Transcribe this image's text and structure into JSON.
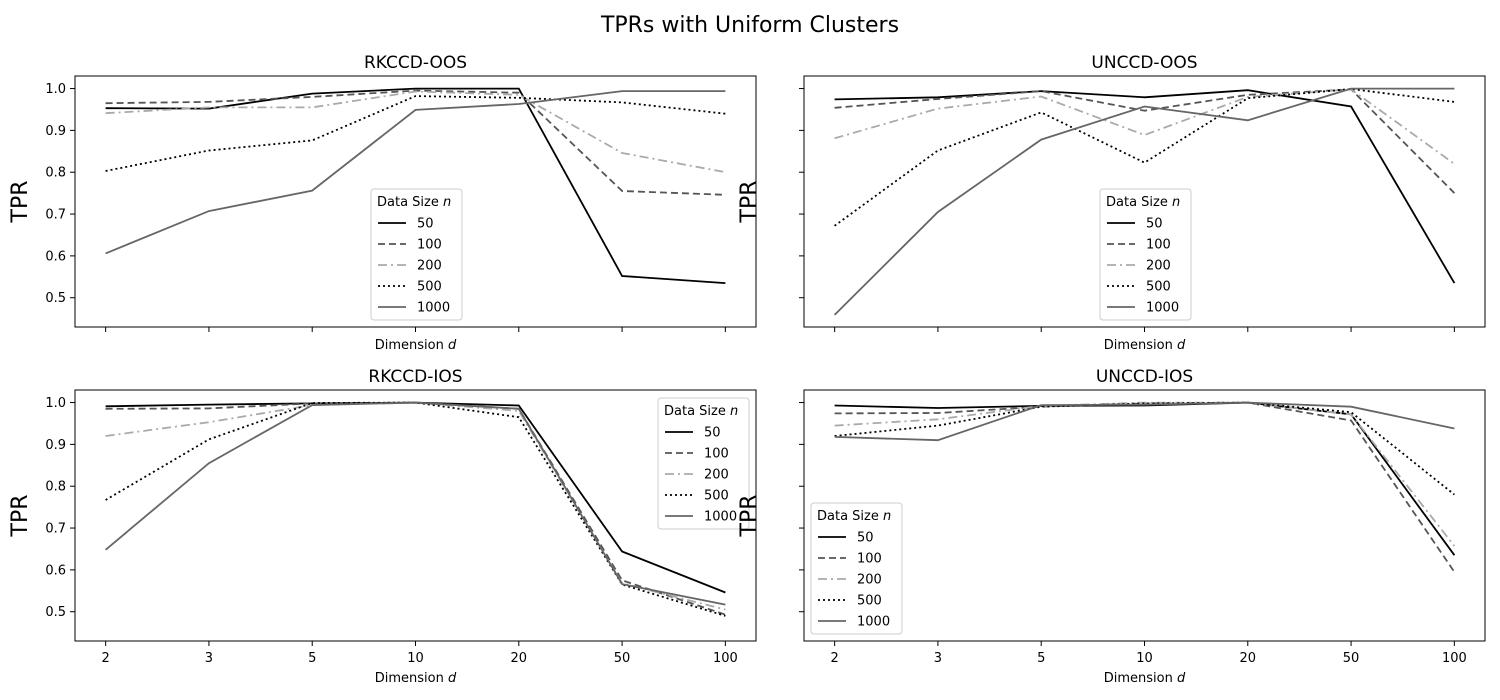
{
  "figure_title": "TPRs with Uniform Clusters",
  "legend_title_prefix": "Data Size",
  "legend_title_var": "n",
  "xlabel_prefix": "Dimension",
  "xlabel_var": "d",
  "ylabel": "TPR",
  "series_styles": [
    {
      "name": "50",
      "color": "#000000",
      "dash": "solid"
    },
    {
      "name": "100",
      "color": "#555555",
      "dash": "dashed"
    },
    {
      "name": "200",
      "color": "#aaaaaa",
      "dash": "dashdot"
    },
    {
      "name": "500",
      "color": "#000000",
      "dash": "dotted"
    },
    {
      "name": "1000",
      "color": "#666666",
      "dash": "solid"
    }
  ],
  "chart_data": [
    {
      "type": "line",
      "title": "RKCCD-OOS",
      "categories": [
        "2",
        "3",
        "5",
        "10",
        "20",
        "50",
        "100"
      ],
      "ylim": [
        0.43,
        1.03
      ],
      "yticks": [
        "0.5",
        "0.6",
        "0.7",
        "0.8",
        "0.9",
        "1.0"
      ],
      "xtick_labels_shown": false,
      "legend_position": "lower-center",
      "series": [
        {
          "name": "50",
          "values": [
            0.953,
            0.952,
            0.988,
            1.0,
            1.0,
            0.552,
            0.535
          ]
        },
        {
          "name": "100",
          "values": [
            0.965,
            0.968,
            0.98,
            0.995,
            0.99,
            0.755,
            0.746
          ]
        },
        {
          "name": "200",
          "values": [
            0.941,
            0.955,
            0.955,
            0.993,
            0.985,
            0.846,
            0.8
          ]
        },
        {
          "name": "500",
          "values": [
            0.803,
            0.852,
            0.876,
            0.982,
            0.978,
            0.967,
            0.94
          ]
        },
        {
          "name": "1000",
          "values": [
            0.606,
            0.707,
            0.756,
            0.949,
            0.963,
            0.994,
            0.994
          ]
        }
      ]
    },
    {
      "type": "line",
      "title": "UNCCD-OOS",
      "categories": [
        "2",
        "3",
        "5",
        "10",
        "20",
        "50",
        "100"
      ],
      "ylim": [
        0.43,
        1.03
      ],
      "yticks": [
        "0.5",
        "0.6",
        "0.7",
        "0.8",
        "0.9",
        "1.0"
      ],
      "xtick_labels_shown": false,
      "ytick_labels_shown": false,
      "legend_position": "lower-center",
      "series": [
        {
          "name": "50",
          "values": [
            0.974,
            0.979,
            0.994,
            0.979,
            0.996,
            0.957,
            0.535
          ]
        },
        {
          "name": "100",
          "values": [
            0.954,
            0.975,
            0.994,
            0.947,
            0.985,
            0.998,
            0.75
          ]
        },
        {
          "name": "200",
          "values": [
            0.881,
            0.952,
            0.981,
            0.889,
            0.98,
            0.998,
            0.82
          ]
        },
        {
          "name": "500",
          "values": [
            0.672,
            0.852,
            0.943,
            0.823,
            0.977,
            0.999,
            0.968
          ]
        },
        {
          "name": "1000",
          "values": [
            0.459,
            0.705,
            0.878,
            0.957,
            0.924,
            1.0,
            1.0
          ]
        }
      ]
    },
    {
      "type": "line",
      "title": "RKCCD-IOS",
      "categories": [
        "2",
        "3",
        "5",
        "10",
        "20",
        "50",
        "100"
      ],
      "ylim": [
        0.43,
        1.03
      ],
      "yticks": [
        "0.5",
        "0.6",
        "0.7",
        "0.8",
        "0.9",
        "1.0"
      ],
      "xtick_labels_shown": true,
      "legend_position": "upper-right",
      "series": [
        {
          "name": "50",
          "values": [
            0.991,
            0.995,
            0.998,
            1.0,
            0.993,
            0.644,
            0.546
          ]
        },
        {
          "name": "100",
          "values": [
            0.985,
            0.986,
            0.998,
            1.0,
            0.985,
            0.575,
            0.493
          ]
        },
        {
          "name": "200",
          "values": [
            0.92,
            0.953,
            0.994,
            1.0,
            0.98,
            0.568,
            0.505
          ]
        },
        {
          "name": "500",
          "values": [
            0.767,
            0.912,
            0.999,
            1.0,
            0.965,
            0.565,
            0.49
          ]
        },
        {
          "name": "1000",
          "values": [
            0.648,
            0.855,
            0.994,
            1.0,
            0.985,
            0.566,
            0.517
          ]
        }
      ]
    },
    {
      "type": "line",
      "title": "UNCCD-IOS",
      "categories": [
        "2",
        "3",
        "5",
        "10",
        "20",
        "50",
        "100"
      ],
      "ylim": [
        0.43,
        1.03
      ],
      "yticks": [
        "0.5",
        "0.6",
        "0.7",
        "0.8",
        "0.9",
        "1.0"
      ],
      "xtick_labels_shown": true,
      "ytick_labels_shown": false,
      "legend_position": "lower-left",
      "series": [
        {
          "name": "50",
          "values": [
            0.993,
            0.987,
            0.992,
            0.993,
            1.0,
            0.972,
            0.635
          ]
        },
        {
          "name": "100",
          "values": [
            0.974,
            0.975,
            0.99,
            0.998,
            1.0,
            0.957,
            0.595
          ]
        },
        {
          "name": "200",
          "values": [
            0.945,
            0.96,
            0.992,
            1.0,
            1.0,
            0.972,
            0.657
          ]
        },
        {
          "name": "500",
          "values": [
            0.92,
            0.945,
            0.99,
            0.998,
            1.0,
            0.977,
            0.78
          ]
        },
        {
          "name": "1000",
          "values": [
            0.918,
            0.91,
            0.994,
            0.995,
            1.0,
            0.99,
            0.938
          ]
        }
      ]
    }
  ]
}
